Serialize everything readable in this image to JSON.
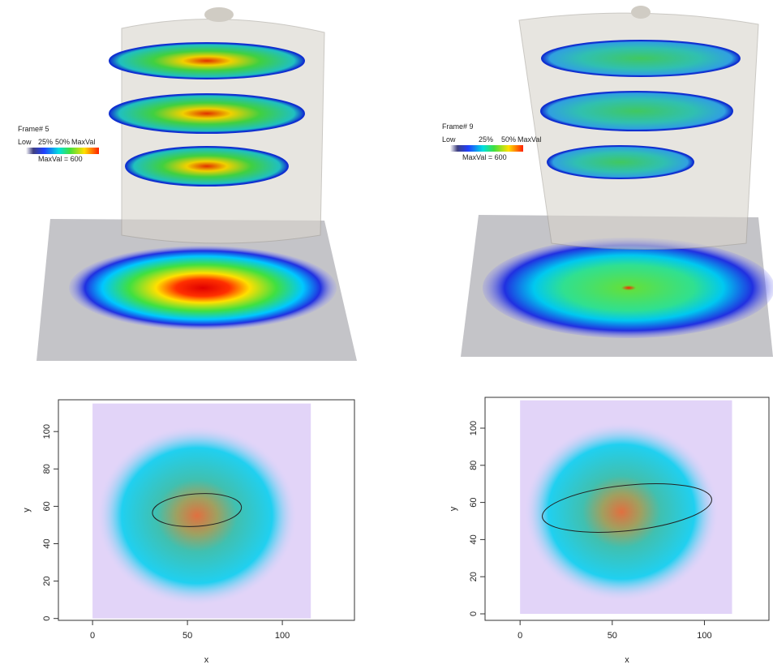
{
  "panels": [
    {
      "frame": "Frame# 5",
      "legend": {
        "labels": [
          "Low",
          "25%",
          "50%",
          "MaxVal"
        ],
        "max": "MaxVal = 600"
      }
    },
    {
      "frame": "Frame# 9",
      "legend": {
        "labels": [
          "Low",
          "25%",
          "50%",
          "MaxVal"
        ],
        "max": "MaxVal = 600"
      }
    }
  ],
  "plots": [
    {
      "xlabel": "x",
      "ylabel": "y",
      "xlim": [
        -18,
        138
      ],
      "ylim": [
        -1,
        117
      ],
      "xticks": [
        0,
        50,
        100
      ],
      "yticks": [
        0,
        20,
        40,
        60,
        80,
        100
      ]
    },
    {
      "xlabel": "x",
      "ylabel": "y",
      "xlim": [
        -19,
        135
      ],
      "ylim": [
        -3.5,
        116.6
      ],
      "xticks": [
        0,
        50,
        100
      ],
      "yticks": [
        0,
        20,
        40,
        60,
        80,
        100
      ]
    }
  ]
}
